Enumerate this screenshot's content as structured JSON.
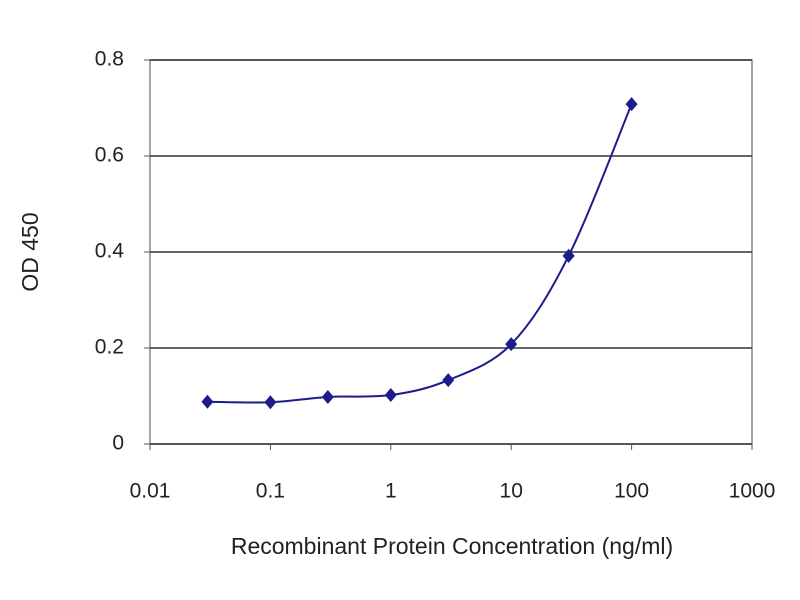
{
  "chart_data": {
    "type": "line",
    "x_label": "Recombinant Protein Concentration (ng/ml)",
    "y_label": "OD 450",
    "x": [
      0.03,
      0.1,
      0.3,
      1,
      3,
      10,
      30,
      100
    ],
    "values": [
      0.088,
      0.087,
      0.098,
      0.102,
      0.133,
      0.208,
      0.392,
      0.708
    ],
    "color": "#1c1c8a",
    "xscale": "log",
    "xlim": [
      0.01,
      1000
    ],
    "xticks": [
      0.01,
      0.1,
      1,
      10,
      100,
      1000
    ],
    "ylim": [
      0,
      0.8
    ],
    "yticks": [
      0,
      0.2,
      0.4,
      0.6,
      0.8
    ],
    "grid": true
  }
}
